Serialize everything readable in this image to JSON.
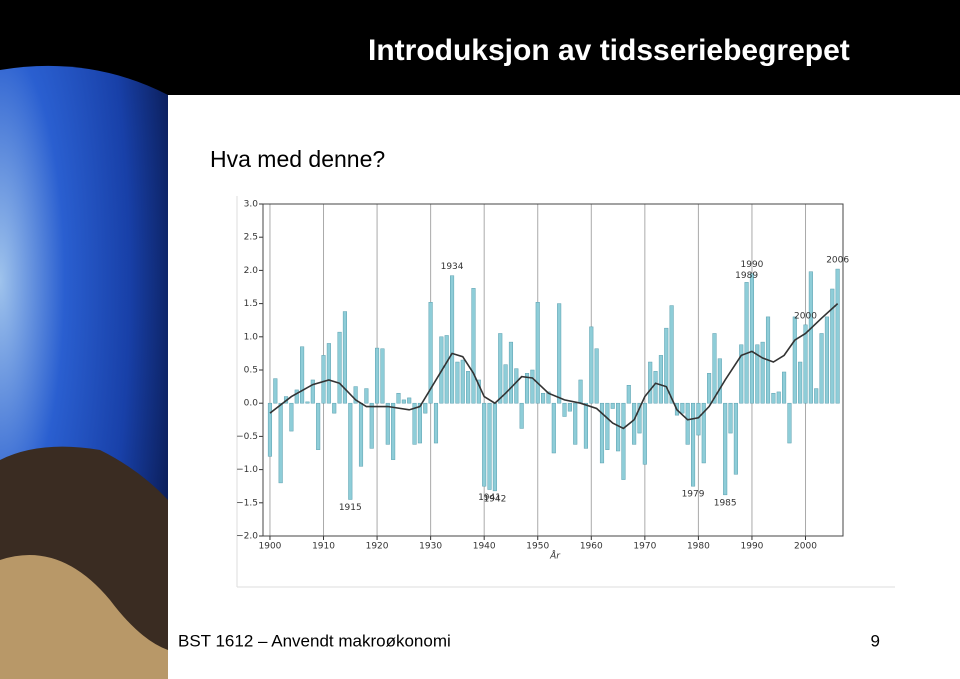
{
  "slide": {
    "title": "Introduksjon av tidsseriebegrepet",
    "subtitle": "Hva med denne?",
    "footer": "BST 1612 – Anvendt makroøkonomi",
    "page_number": "9"
  },
  "chart_data": {
    "type": "bar",
    "x_label": "År",
    "color": "#8ecdd8",
    "edge_color": "#5a9fae",
    "x": [
      1900,
      1901,
      1902,
      1903,
      1904,
      1905,
      1906,
      1907,
      1908,
      1909,
      1910,
      1911,
      1912,
      1913,
      1914,
      1915,
      1916,
      1917,
      1918,
      1919,
      1920,
      1921,
      1922,
      1923,
      1924,
      1925,
      1926,
      1927,
      1928,
      1929,
      1930,
      1931,
      1932,
      1933,
      1934,
      1935,
      1936,
      1937,
      1938,
      1939,
      1940,
      1941,
      1942,
      1943,
      1944,
      1945,
      1946,
      1947,
      1948,
      1949,
      1950,
      1951,
      1952,
      1953,
      1954,
      1955,
      1956,
      1957,
      1958,
      1959,
      1960,
      1961,
      1962,
      1963,
      1964,
      1965,
      1966,
      1967,
      1968,
      1969,
      1970,
      1971,
      1972,
      1973,
      1974,
      1975,
      1976,
      1977,
      1978,
      1979,
      1980,
      1981,
      1982,
      1983,
      1984,
      1985,
      1986,
      1987,
      1988,
      1989,
      1990,
      1991,
      1992,
      1993,
      1994,
      1995,
      1996,
      1997,
      1998,
      1999,
      2000,
      2001,
      2002,
      2003,
      2004,
      2005,
      2006
    ],
    "values": [
      -0.8,
      0.37,
      -1.2,
      0.1,
      -0.42,
      0.2,
      0.85,
      0.02,
      0.35,
      -0.7,
      0.72,
      0.9,
      -0.15,
      1.07,
      1.38,
      -1.45,
      0.25,
      -0.95,
      0.22,
      -0.68,
      0.83,
      0.82,
      -0.62,
      -0.85,
      0.15,
      0.05,
      0.08,
      -0.62,
      -0.6,
      -0.15,
      1.52,
      -0.6,
      1.0,
      1.02,
      1.92,
      0.62,
      0.65,
      0.48,
      1.73,
      0.35,
      -1.25,
      -1.3,
      -1.32,
      1.05,
      0.58,
      0.92,
      0.52,
      -0.38,
      0.45,
      0.5,
      1.52,
      0.15,
      0.17,
      -0.75,
      1.5,
      -0.2,
      -0.12,
      -0.62,
      0.35,
      -0.68,
      1.15,
      0.82,
      -0.9,
      -0.7,
      -0.08,
      -0.72,
      -1.15,
      0.27,
      -0.62,
      -0.45,
      -0.92,
      0.62,
      0.48,
      0.72,
      1.13,
      1.47,
      -0.18,
      -0.15,
      -0.62,
      -1.25,
      -0.48,
      -0.9,
      0.45,
      1.05,
      0.67,
      -1.38,
      -0.45,
      -1.07,
      0.88,
      1.82,
      1.95,
      0.88,
      0.92,
      1.3,
      0.15,
      0.17,
      0.47,
      -0.6,
      1.3,
      0.62,
      1.18,
      1.98,
      0.22,
      1.05,
      1.3,
      1.72,
      2.02
    ],
    "trend": {
      "color": "#333333",
      "x": [
        1900,
        1904,
        1908,
        1911,
        1913,
        1916,
        1918,
        1922,
        1926,
        1928,
        1931,
        1934,
        1936,
        1938,
        1940,
        1942,
        1944,
        1947,
        1949,
        1952,
        1955,
        1958,
        1961,
        1964,
        1966,
        1968,
        1970,
        1972,
        1974,
        1976,
        1978,
        1980,
        1982,
        1985,
        1988,
        1990,
        1992,
        1994,
        1996,
        1998,
        2000,
        2003,
        2006
      ],
      "values": [
        -0.15,
        0.1,
        0.28,
        0.35,
        0.3,
        0.05,
        -0.05,
        -0.05,
        -0.1,
        -0.05,
        0.35,
        0.75,
        0.7,
        0.45,
        0.1,
        0.0,
        0.15,
        0.4,
        0.38,
        0.15,
        0.05,
        0.0,
        -0.08,
        -0.3,
        -0.38,
        -0.25,
        0.1,
        0.3,
        0.25,
        -0.1,
        -0.25,
        -0.22,
        -0.05,
        0.35,
        0.72,
        0.78,
        0.68,
        0.62,
        0.72,
        0.95,
        1.05,
        1.28,
        1.5
      ]
    },
    "annotations": [
      "1934",
      "1990",
      "1989",
      "2000",
      "2006",
      "1915",
      "1941",
      "1942",
      "1979",
      "1985"
    ],
    "xlim": [
      1898.7,
      2007
    ],
    "ylim": [
      -2,
      3
    ],
    "xticks": [
      1900,
      1910,
      1920,
      1930,
      1940,
      1950,
      1960,
      1970,
      1980,
      1990,
      2000
    ],
    "yticks": [
      {
        "value": -2,
        "label": "−2.0"
      },
      {
        "value": -1.5,
        "label": "−1.5"
      },
      {
        "value": -1,
        "label": "−1.0"
      },
      {
        "value": -0.5,
        "label": "−0.5"
      },
      {
        "value": 0,
        "label": "0.0"
      },
      {
        "value": 0.5,
        "label": "0.5"
      },
      {
        "value": 1,
        "label": "1.0"
      },
      {
        "value": 1.5,
        "label": "1.5"
      },
      {
        "value": 2,
        "label": "2.0"
      },
      {
        "value": 2.5,
        "label": "2.5"
      },
      {
        "value": 3,
        "label": "3.0"
      }
    ],
    "grid": true
  }
}
